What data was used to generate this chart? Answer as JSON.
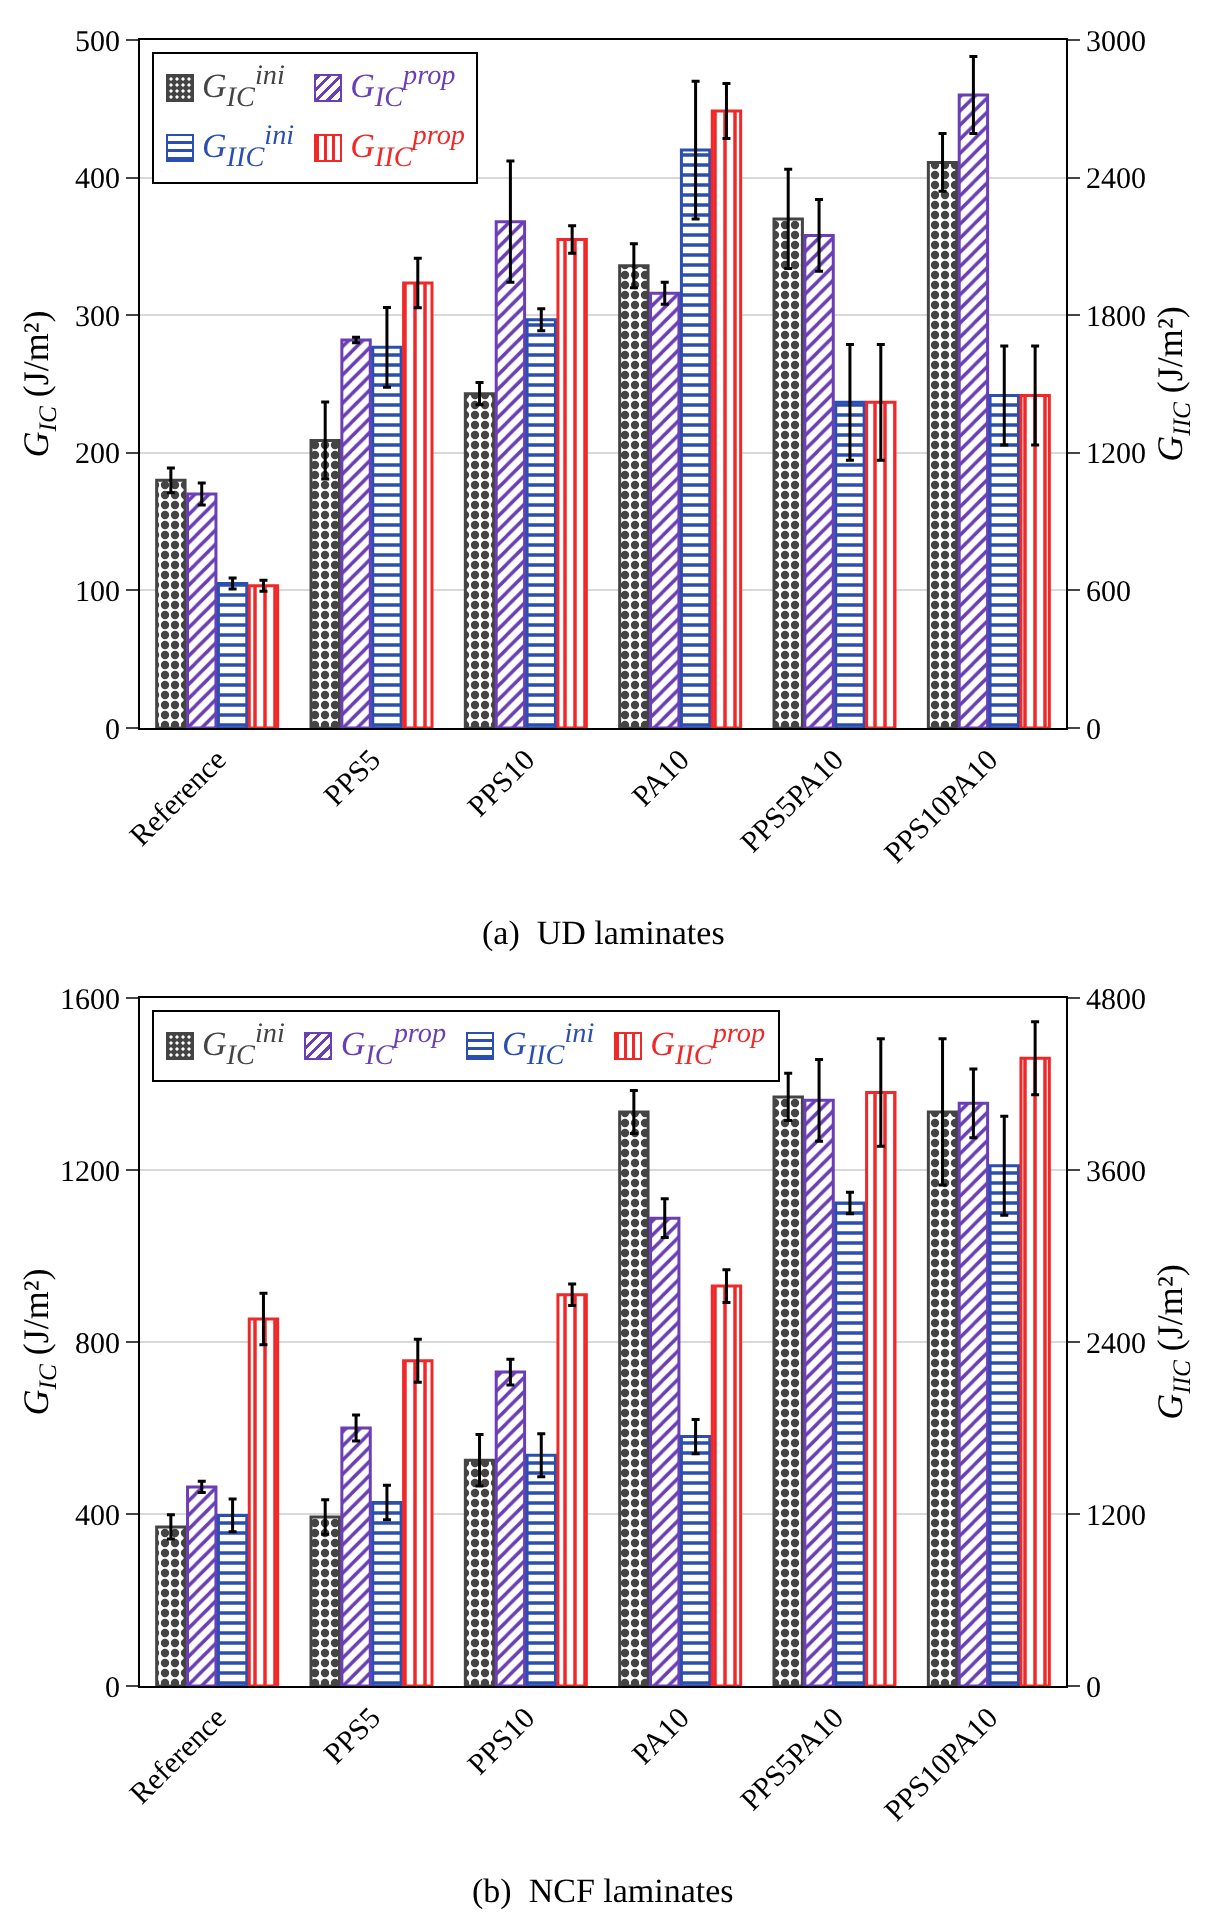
{
  "chart_data": [
    {
      "type": "bar",
      "categories": [
        "Reference",
        "PPS5",
        "PPS10",
        "PA10",
        "PPS5PA10",
        "PPS10PA10"
      ],
      "ylabel": "G$_{IC}$ (J/m²)",
      "y2label": "G$_{IIC}$ (J/m²)",
      "ylim": [
        0,
        500
      ],
      "yticks": [
        0,
        100,
        200,
        300,
        400,
        500
      ],
      "y2lim": [
        0,
        3000
      ],
      "y2ticks": [
        0,
        600,
        1200,
        1800,
        2400,
        3000
      ],
      "grid": "y",
      "legend": "top left",
      "annotations": [
        "(a)  UD laminates"
      ],
      "series": [
        {
          "name": "G$_{IC}$$^{ini}$",
          "color": "#444444",
          "values": [
            180,
            209,
            243,
            336,
            370,
            411
          ],
          "errors": [
            9,
            28,
            8,
            16,
            36,
            21
          ]
        },
        {
          "name": "G$_{IC}$$^{prop}$",
          "color": "#6a3fb5",
          "values": [
            170,
            282,
            368,
            316,
            358,
            460
          ],
          "errors": [
            8,
            2,
            44,
            8,
            26,
            28
          ]
        },
        {
          "name": "G$_{IIC}$$^{ini}$",
          "color": "#2a4fb0",
          "axis": "y2",
          "values": [
            630,
            1660,
            1780,
            2520,
            1420,
            1450
          ],
          "errors": [
            24,
            174,
            48,
            300,
            252,
            216
          ]
        },
        {
          "name": "G$_{IIC}$$^{prop}$",
          "color": "#f02828",
          "axis": "y2",
          "values": [
            620,
            1940,
            2130,
            2690,
            1420,
            1450
          ],
          "errors": [
            24,
            108,
            60,
            120,
            252,
            216
          ]
        }
      ]
    },
    {
      "type": "bar",
      "categories": [
        "Reference",
        "PPS5",
        "PPS10",
        "PA10",
        "PPS5PA10",
        "PPS10PA10"
      ],
      "ylabel": "G$_{IC}$ (J/m²)",
      "y2label": "G$_{IIC}$ (J/m²)",
      "ylim": [
        0,
        1600
      ],
      "yticks": [
        0,
        400,
        800,
        1200,
        1600
      ],
      "y2lim": [
        0,
        4800
      ],
      "y2ticks": [
        0,
        1200,
        2400,
        3600,
        4800
      ],
      "grid": "y",
      "legend": "top left",
      "annotations": [
        "(b)  NCF laminates"
      ],
      "series": [
        {
          "name": "G$_{IC}$$^{ini}$",
          "color": "#444444",
          "values": [
            370,
            393,
            525,
            1335,
            1370,
            1335
          ],
          "errors": [
            28,
            40,
            60,
            50,
            55,
            170
          ]
        },
        {
          "name": "G$_{IC}$$^{prop}$",
          "color": "#6a3fb5",
          "values": [
            463,
            600,
            730,
            1088,
            1362,
            1355
          ],
          "errors": [
            13,
            30,
            30,
            45,
            95,
            80
          ]
        },
        {
          "name": "G$_{IIC}$$^{ini}$",
          "color": "#2a4fb0",
          "axis": "y2",
          "values": [
            1190,
            1280,
            1610,
            1740,
            3370,
            3630
          ],
          "errors": [
            114,
            120,
            150,
            120,
            75,
            345
          ]
        },
        {
          "name": "G$_{IIC}$$^{prop}$",
          "color": "#f02828",
          "axis": "y2",
          "values": [
            2560,
            2270,
            2730,
            2790,
            4140,
            4380
          ],
          "errors": [
            180,
            150,
            75,
            114,
            375,
            255
          ]
        }
      ]
    }
  ]
}
